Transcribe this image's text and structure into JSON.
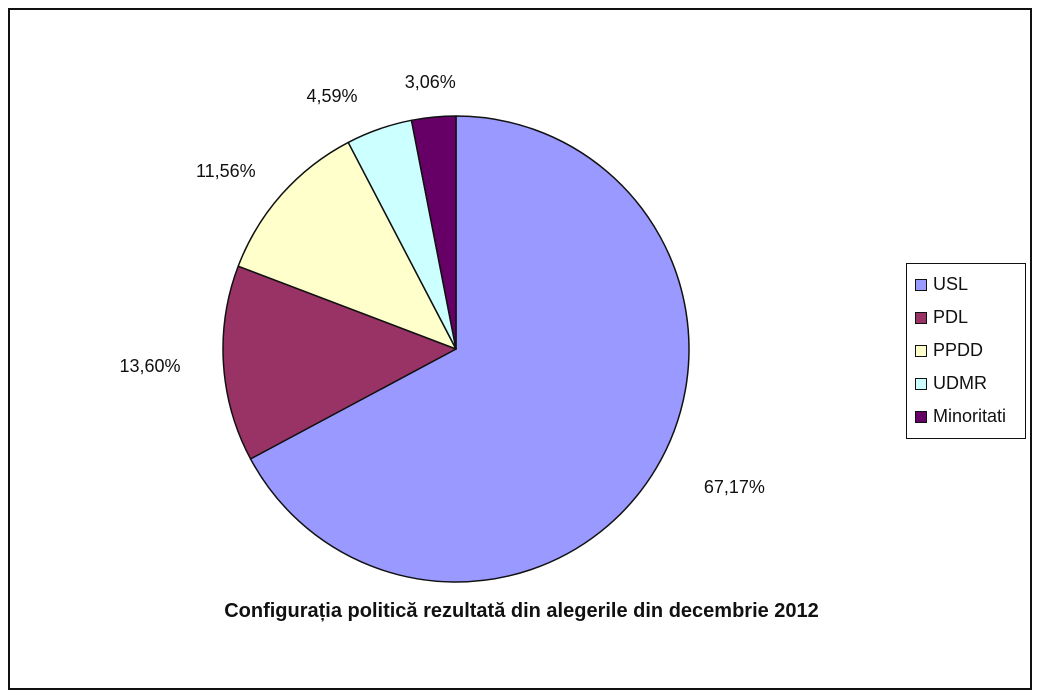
{
  "chart_data": {
    "type": "pie",
    "title": "Configurația politică rezultată din alegerile din decembrie 2012",
    "legend_position": "right",
    "start_angle_deg": 0,
    "direction": "clockwise",
    "slices": [
      {
        "name": "USL",
        "value": 67.17,
        "label": "67,17%",
        "color": "#9999ff"
      },
      {
        "name": "PDL",
        "value": 13.6,
        "label": "13,60%",
        "color": "#993366"
      },
      {
        "name": "PPDD",
        "value": 11.56,
        "label": "11,56%",
        "color": "#ffffcc"
      },
      {
        "name": "UDMR",
        "value": 4.59,
        "label": "4,59%",
        "color": "#ccffff"
      },
      {
        "name": "Minoritati",
        "value": 3.06,
        "label": "3,06%",
        "color": "#660066"
      }
    ]
  }
}
